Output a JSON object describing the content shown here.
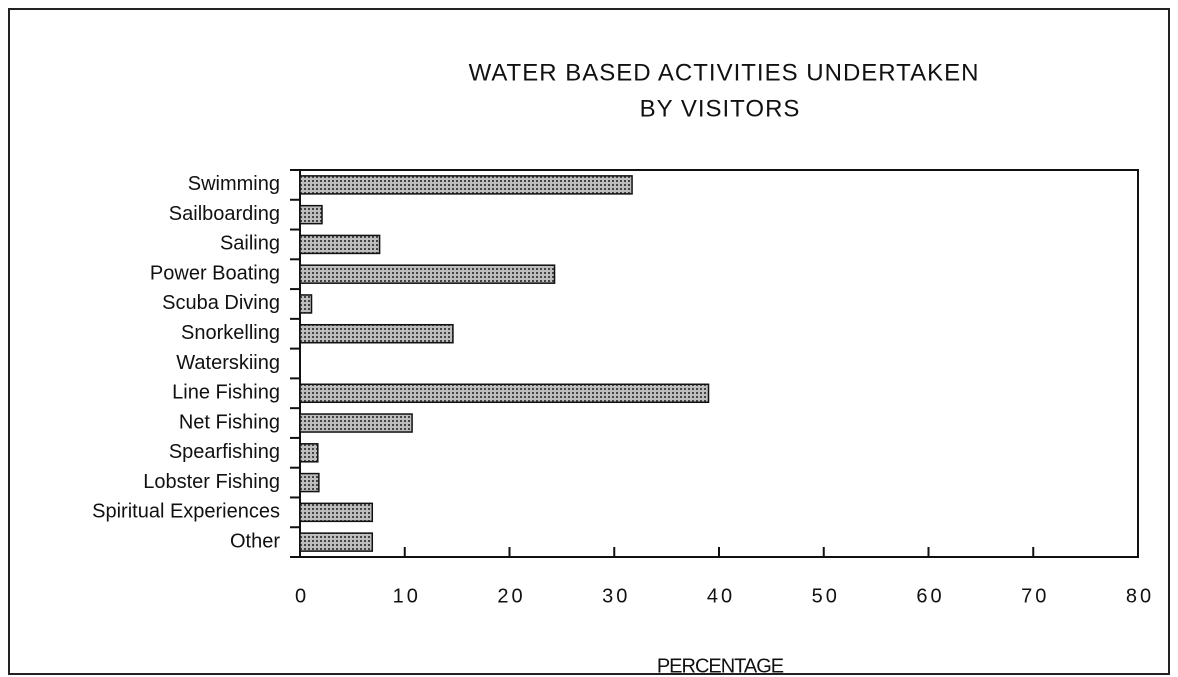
{
  "chart_data": {
    "type": "bar",
    "orientation": "horizontal",
    "title": [
      "WATER BASED ACTIVITIES UNDERTAKEN",
      "BY VISITORS"
    ],
    "xlabel": "PERCENTAGE",
    "categories": [
      "Swimming",
      "Sailboarding",
      "Sailing",
      "Power Boating",
      "Scuba Diving",
      "Snorkelling",
      "Waterskiing",
      "Line Fishing",
      "Net Fishing",
      "Spearfishing",
      "Lobster Fishing",
      "Spiritual Experiences",
      "Other"
    ],
    "values": [
      31.7,
      2.1,
      7.6,
      24.3,
      1.1,
      14.6,
      0,
      39,
      10.7,
      1.7,
      1.8,
      6.9,
      6.9
    ],
    "color": "#8a8a8a",
    "xlim": [
      0,
      80
    ],
    "xticks": [
      0,
      10,
      20,
      30,
      40,
      50,
      60,
      70,
      80
    ],
    "grid": false
  }
}
